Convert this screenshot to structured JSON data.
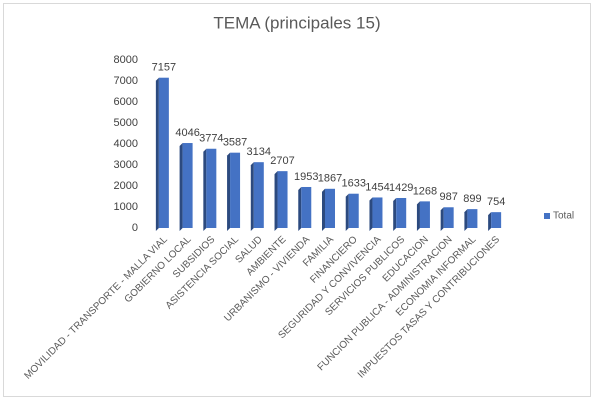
{
  "chart_data": {
    "type": "bar",
    "title": "TEMA (principales 15)",
    "categories": [
      "MOVILIDAD - TRANSPORTE - MALLA VIAL",
      "GOBIERNO LOCAL",
      "SUBSIDIOS",
      "ASISTENCIA SOCIAL",
      "SALUD",
      "AMBIENTE",
      "URBANISMO - VIVIENDA",
      "FAMILIA",
      "FINANCIERO",
      "SEGURIDAD Y CONVIVENCIA",
      "SERVICIOS PUBLICOS",
      "EDUCACION",
      "FUNCION PUBLICA - ADMINISTRACION",
      "ECONOMIA INFORMAL",
      "IMPUESTOS TASAS Y CONTRIBUCIONES"
    ],
    "series": [
      {
        "name": "Total",
        "color": "#4472c4",
        "values": [
          7157,
          4046,
          3774,
          3587,
          3134,
          2707,
          1953,
          1867,
          1633,
          1454,
          1429,
          1268,
          987,
          899,
          754
        ]
      }
    ],
    "ylim": [
      0,
      8000
    ],
    "yticks": [
      0,
      1000,
      2000,
      3000,
      4000,
      5000,
      6000,
      7000,
      8000
    ],
    "grid": false,
    "legend": "right"
  }
}
